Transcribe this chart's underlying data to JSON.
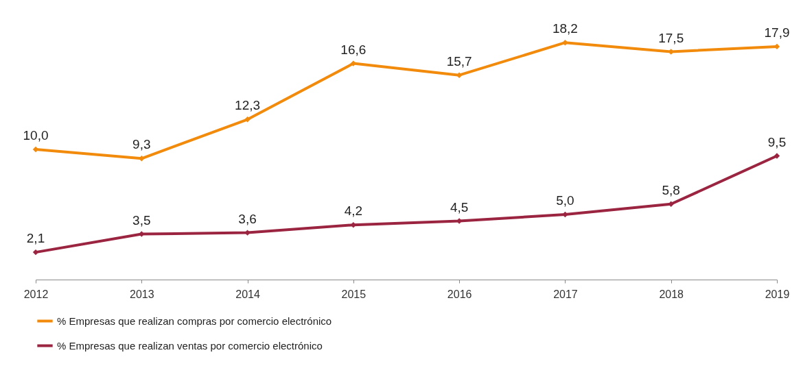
{
  "chart_data": {
    "type": "line",
    "categories": [
      "2012",
      "2013",
      "2014",
      "2015",
      "2016",
      "2017",
      "2018",
      "2019"
    ],
    "series": [
      {
        "name": "% Empresas que realizan compras por comercio electrónico",
        "color": "#f28a0c",
        "values": [
          10.0,
          9.3,
          12.3,
          16.6,
          15.7,
          18.2,
          17.5,
          17.9
        ],
        "value_labels": [
          "10,0",
          "9,3",
          "12,3",
          "16,6",
          "15,7",
          "18,2",
          "17,5",
          "17,9"
        ]
      },
      {
        "name": "% Empresas que realizan ventas por comercio electrónico",
        "color": "#9b2440",
        "values": [
          2.1,
          3.5,
          3.6,
          4.2,
          4.5,
          5.0,
          5.8,
          9.5
        ],
        "value_labels": [
          "2,1",
          "3,5",
          "3,6",
          "4,2",
          "4,5",
          "5,0",
          "5,8",
          "9,5"
        ]
      }
    ],
    "tick_labels": "x",
    "marker": "diamond",
    "legend": "bottom",
    "line_style": "solid"
  }
}
